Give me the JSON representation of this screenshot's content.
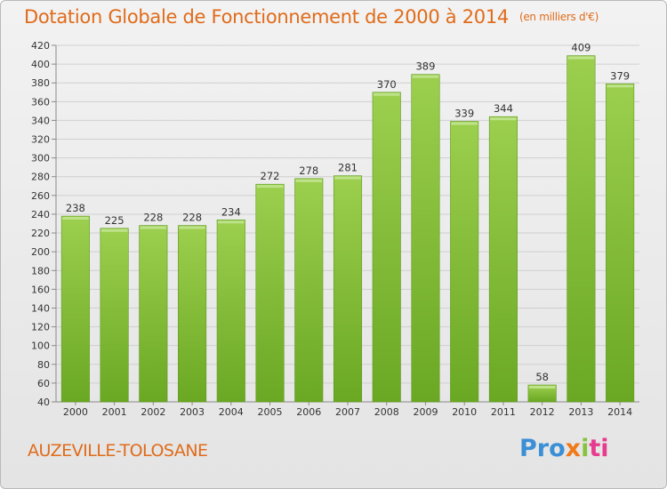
{
  "header": {
    "title": "Dotation Globale de Fonctionnement de 2000 à 2014",
    "subtitle": "(en milliers d'€)"
  },
  "footer": {
    "commune": "AUZEVILLE-TOLOSANE",
    "logo": [
      "Pro",
      "x",
      "i",
      "ti"
    ]
  },
  "colors": {
    "title": "#e06b1a",
    "bar_top": "#9ccf4e",
    "bar_bottom": "#6aa823"
  },
  "chart_data": {
    "type": "bar",
    "title": "Dotation Globale de Fonctionnement de 2000 à 2014",
    "subtitle": "(en milliers d'€)",
    "categories": [
      "2000",
      "2001",
      "2002",
      "2003",
      "2004",
      "2005",
      "2006",
      "2007",
      "2008",
      "2009",
      "2010",
      "2011",
      "2012",
      "2013",
      "2014"
    ],
    "values": [
      238,
      225,
      228,
      228,
      234,
      272,
      278,
      281,
      370,
      389,
      339,
      344,
      58,
      409,
      379
    ],
    "ylim": [
      40,
      420
    ],
    "yticks": [
      40,
      60,
      80,
      100,
      120,
      140,
      160,
      180,
      200,
      220,
      240,
      260,
      280,
      300,
      320,
      340,
      360,
      380,
      400,
      420
    ],
    "grid": true,
    "data_labels": true
  }
}
